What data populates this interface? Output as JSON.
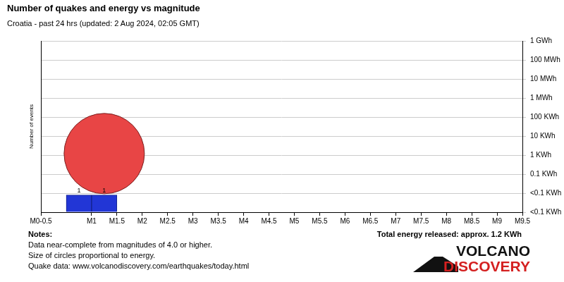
{
  "chart_data": {
    "type": "histogram",
    "title": "Number of quakes and energy vs magnitude",
    "subtitle": "Croatia - past 24 hrs (updated: 2 Aug 2024, 02:05 GMT)",
    "y2_label": "Number of events",
    "xlim": [
      0,
      9.5
    ],
    "xticks": [
      {
        "value": 0,
        "label": "M0-0.5"
      },
      {
        "value": 1,
        "label": "M1"
      },
      {
        "value": 1.5,
        "label": "M1.5"
      },
      {
        "value": 2,
        "label": "M2"
      },
      {
        "value": 2.5,
        "label": "M2.5"
      },
      {
        "value": 3,
        "label": "M3"
      },
      {
        "value": 3.5,
        "label": "M3.5"
      },
      {
        "value": 4,
        "label": "M4"
      },
      {
        "value": 4.5,
        "label": "M4.5"
      },
      {
        "value": 5,
        "label": "M5"
      },
      {
        "value": 5.5,
        "label": "M5.5"
      },
      {
        "value": 6,
        "label": "M6"
      },
      {
        "value": 6.5,
        "label": "M6.5"
      },
      {
        "value": 7,
        "label": "M7"
      },
      {
        "value": 7.5,
        "label": "M7.5"
      },
      {
        "value": 8,
        "label": "M8"
      },
      {
        "value": 8.5,
        "label": "M8.5"
      },
      {
        "value": 9,
        "label": "M9"
      },
      {
        "value": 9.5,
        "label": "M9.5"
      }
    ],
    "log": "y",
    "ylim": [
      0.001,
      1000000
    ],
    "yticks": [
      {
        "value": 0.001,
        "label": "<0.1 KWh"
      },
      {
        "value": 0.01,
        "label": "<0.1 KWh"
      },
      {
        "value": 0.1,
        "label": "0.1 KWh"
      },
      {
        "value": 1,
        "label": "1 KWh"
      },
      {
        "value": 10,
        "label": "10 KWh"
      },
      {
        "value": 100,
        "label": "100 KWh"
      },
      {
        "value": 1000,
        "label": "1 MWh"
      },
      {
        "value": 10000,
        "label": "10 MWh"
      },
      {
        "value": 100000,
        "label": "100 MWh"
      },
      {
        "value": 1000000,
        "label": "1 GWh"
      }
    ],
    "y2lim": [
      0,
      10
    ],
    "grid": true,
    "series": [
      {
        "type": "bar",
        "axis": "y2",
        "bins": [
          0.5,
          1,
          1.5
        ],
        "values": [
          1,
          1
        ],
        "color": "#2236d6",
        "data_labels": true
      },
      {
        "type": "bubble",
        "x": [
          1.25
        ],
        "values": [
          1.2
        ],
        "size": [
          57
        ],
        "color": "#e84545"
      }
    ],
    "annotations": {
      "total_energy": "Total energy released: approx. 1.2 KWh",
      "notes_title": "Notes:",
      "notes": [
        "Data near-complete from magnitudes of 4.0 or higher.",
        "Size of circles proportional to energy.",
        "Quake data: www.volcanodiscovery.com/earthquakes/today.html"
      ],
      "logo": [
        "VOLCANO",
        "DISCOVERY"
      ]
    }
  }
}
